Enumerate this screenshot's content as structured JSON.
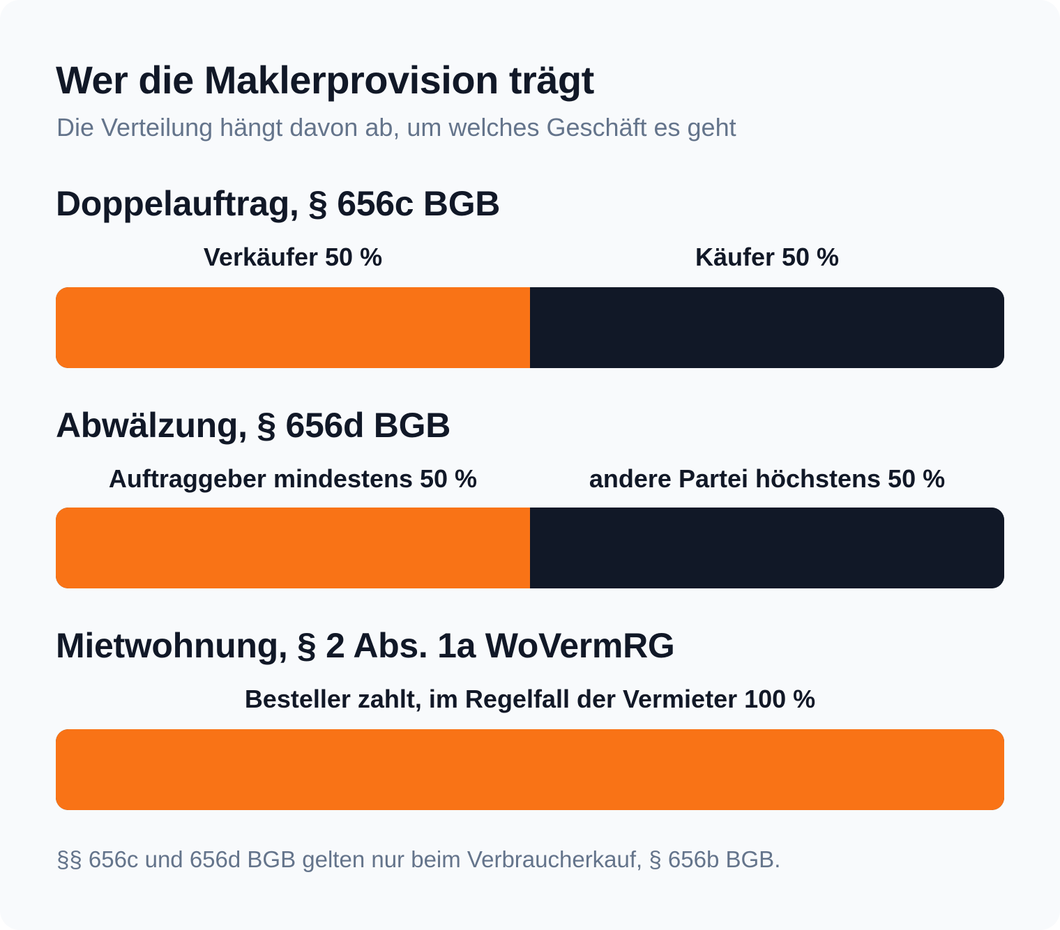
{
  "title": "Wer die Maklerprovision trägt",
  "subtitle": "Die Verteilung hängt davon ab, um welches Geschäft es geht",
  "colors": {
    "primary": "#f97316",
    "secondary": "#111827",
    "background": "#f8fafc",
    "muted_text": "#64748b"
  },
  "chart_data": [
    {
      "type": "bar",
      "stacked": true,
      "orientation": "horizontal",
      "title": "Doppelauftrag, § 656c BGB",
      "series": [
        {
          "label": "Verkäufer 50 %",
          "value": 50,
          "color": "#f97316"
        },
        {
          "label": "Käufer 50 %",
          "value": 50,
          "color": "#111827"
        }
      ]
    },
    {
      "type": "bar",
      "stacked": true,
      "orientation": "horizontal",
      "title": "Abwälzung, § 656d BGB",
      "series": [
        {
          "label": "Auftraggeber mindestens 50 %",
          "value": 50,
          "color": "#f97316"
        },
        {
          "label": "andere Partei höchstens 50 %",
          "value": 50,
          "color": "#111827"
        }
      ]
    },
    {
      "type": "bar",
      "stacked": true,
      "orientation": "horizontal",
      "title": "Mietwohnung, § 2 Abs. 1a WoVermRG",
      "series": [
        {
          "label": "Besteller zahlt, im Regelfall der Vermieter 100 %",
          "value": 100,
          "color": "#f97316"
        }
      ]
    }
  ],
  "footnote": "§§ 656c und 656d BGB gelten nur beim Verbraucherkauf, § 656b BGB."
}
